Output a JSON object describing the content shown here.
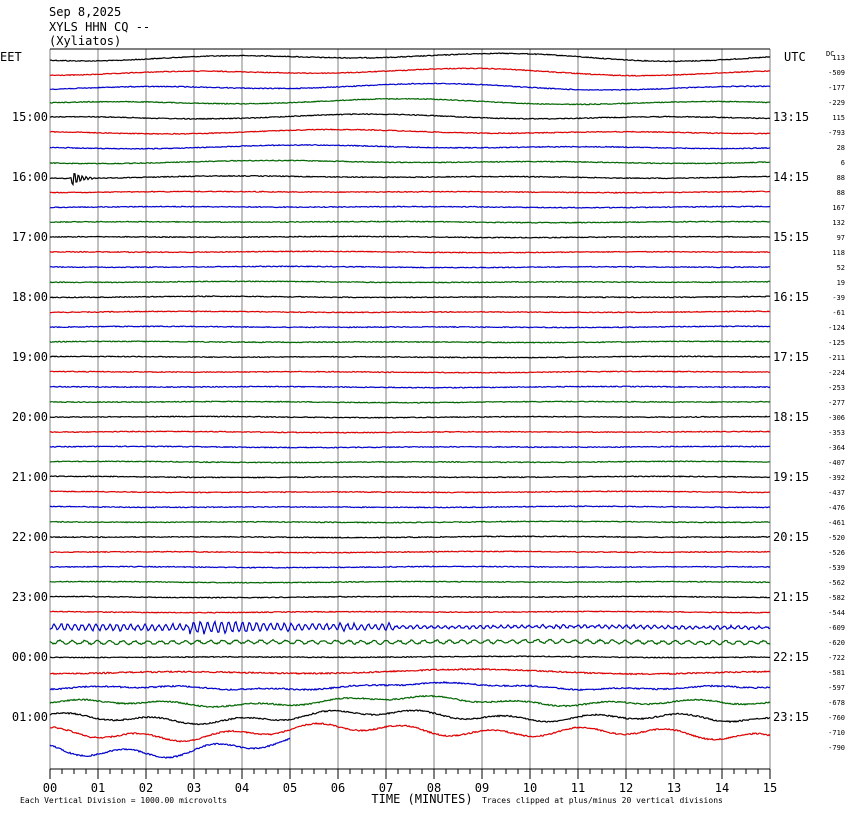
{
  "header": {
    "date": "Sep 8,2025",
    "station": "XYLS HHN CQ --",
    "location": "(Xyliatos)"
  },
  "chart_data": {
    "type": "line",
    "left_timezone": "EET",
    "right_timezone": "UTC",
    "dc_header": "DC",
    "left_time_labels": [
      "15:00",
      "16:00",
      "17:00",
      "18:00",
      "19:00",
      "20:00",
      "21:00",
      "22:00",
      "23:00",
      "00:00",
      "01:00"
    ],
    "right_time_labels": [
      "13:15",
      "14:15",
      "15:15",
      "16:15",
      "17:15",
      "18:15",
      "19:15",
      "20:15",
      "21:15",
      "22:15",
      "23:15"
    ],
    "dc_offsets": [
      113,
      -509,
      -177,
      -229,
      115,
      -793,
      28,
      6,
      88,
      88,
      167,
      132,
      97,
      118,
      52,
      19,
      -39,
      -61,
      -124,
      -125,
      -211,
      -224,
      -253,
      -277,
      -306,
      -353,
      -364,
      -407,
      -392,
      -437,
      -476,
      -461,
      -520,
      -526,
      -539,
      -562,
      -582,
      -544,
      -609,
      -620,
      -722,
      -581,
      -597,
      -678,
      -760,
      -710,
      -790
    ],
    "trace_colors": [
      "#000000",
      "#dd0000",
      "#0000cc",
      "#006600"
    ],
    "x_ticks": [
      "00",
      "01",
      "02",
      "03",
      "04",
      "05",
      "06",
      "07",
      "08",
      "09",
      "10",
      "11",
      "12",
      "13",
      "14",
      "15"
    ],
    "xlabel": "TIME (MINUTES)",
    "xlim": [
      0,
      15
    ],
    "rows": 47,
    "last_row_end_minute": 5,
    "footer_left": "Each Vertical Division = 1000.00 microvolts",
    "footer_right": "Traces clipped at plus/minus 20 vertical divisions",
    "grid": true
  }
}
